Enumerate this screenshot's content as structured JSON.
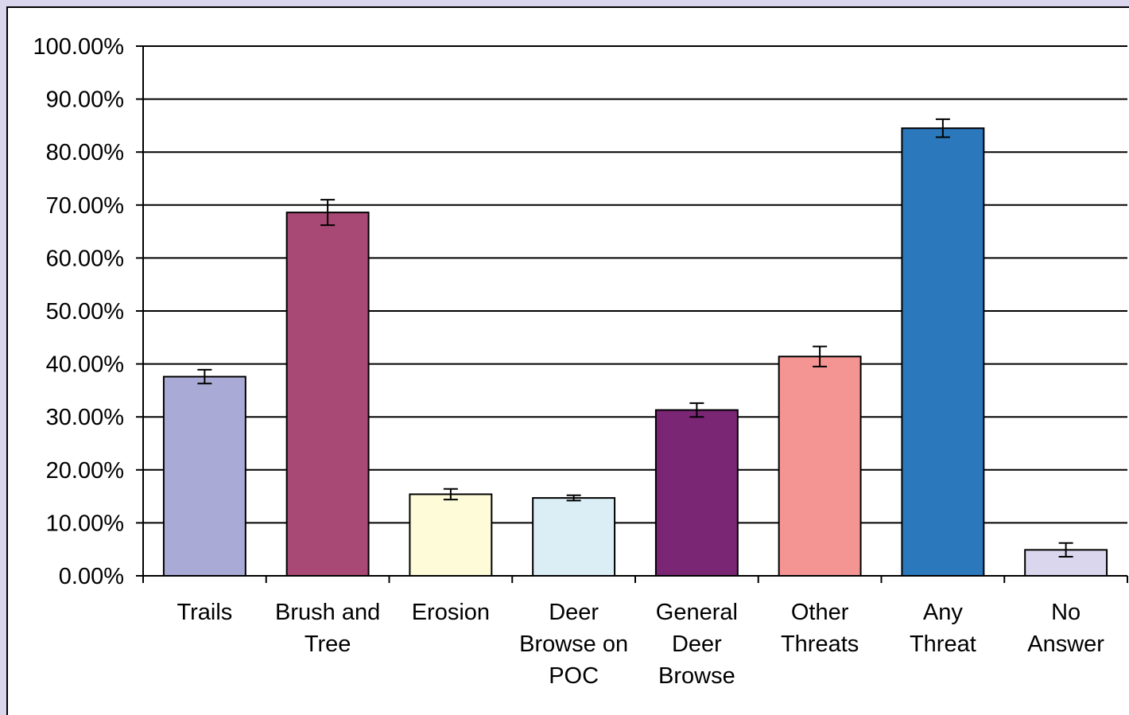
{
  "chart_data": {
    "type": "bar",
    "categories": [
      [
        "Trails"
      ],
      [
        "Brush and",
        "Tree"
      ],
      [
        "Erosion"
      ],
      [
        "Deer",
        "Browse on",
        "POC"
      ],
      [
        "General",
        "Deer",
        "Browse"
      ],
      [
        "Other",
        "Threats"
      ],
      [
        "Any",
        "Threat"
      ],
      [
        "No",
        "Answer"
      ]
    ],
    "values": [
      37.6,
      68.6,
      15.4,
      14.7,
      31.3,
      41.4,
      84.5,
      4.9
    ],
    "errors": [
      1.3,
      2.4,
      1.0,
      0.5,
      1.3,
      1.9,
      1.7,
      1.3
    ],
    "colors": [
      "#aaaad6",
      "#a84874",
      "#fdfbd8",
      "#dbeef5",
      "#7a2674",
      "#f59593",
      "#2b78bd",
      "#d9d6ee"
    ],
    "y_ticks": [
      "0.00%",
      "10.00%",
      "20.00%",
      "30.00%",
      "40.00%",
      "50.00%",
      "60.00%",
      "70.00%",
      "80.00%",
      "90.00%",
      "100.00%"
    ],
    "ylim": [
      0,
      100
    ],
    "grid": true,
    "legend": "none",
    "title": "",
    "xlabel": "",
    "ylabel": ""
  }
}
